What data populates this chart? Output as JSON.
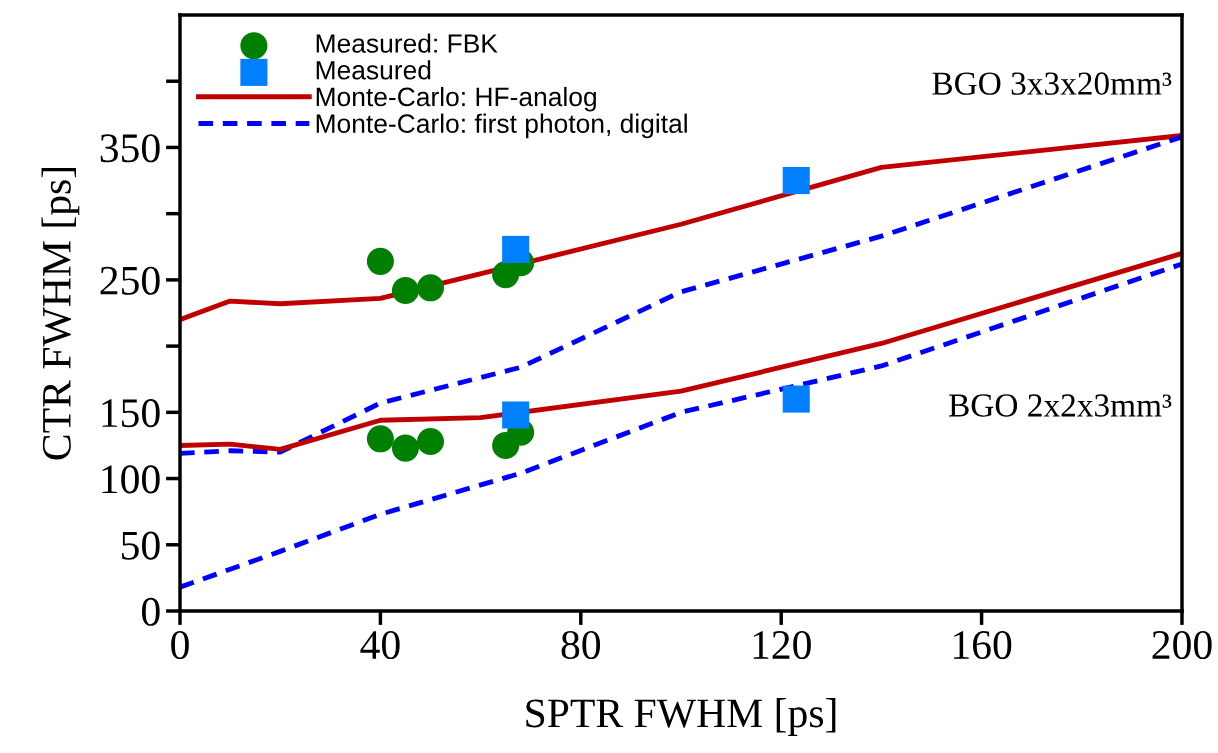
{
  "chart_data": {
    "type": "line",
    "xlabel": "SPTR FWHM [ps]",
    "ylabel": "CTR FWHM [ps]",
    "xlim": [
      0,
      200
    ],
    "xticks": [
      0,
      40,
      80,
      120,
      160,
      200
    ],
    "ylim": [
      0,
      450
    ],
    "yticks": [
      0,
      50,
      100,
      150,
      {
        "value": 200,
        "label": null
      },
      250,
      {
        "value": 300,
        "label": null
      },
      350,
      {
        "value": 400,
        "label": null
      }
    ],
    "grid": false,
    "legend": "top left",
    "annotations": [
      "BGO 3x3x20mm³",
      "BGO 2x2x3mm³"
    ],
    "series": [
      {
        "name": "Measured: FBK",
        "type": "scatter",
        "marker": "circle",
        "color": "#008000",
        "x": [
          40,
          45,
          50,
          65,
          68,
          40,
          45,
          50,
          65,
          68
        ],
        "values": [
          264,
          242,
          244,
          254,
          263,
          130,
          123,
          128,
          125,
          135
        ]
      },
      {
        "name": "Measured",
        "type": "scatter",
        "marker": "square",
        "color": "#0080ff",
        "x": [
          67,
          123,
          67,
          123
        ],
        "values": [
          273,
          325,
          148,
          160
        ]
      },
      {
        "name": "Monte-Carlo: HF-analog",
        "line_style": "solid",
        "color": "#c00000",
        "x": [
          0,
          10,
          20,
          40,
          100,
          140,
          200
        ],
        "values": [
          220,
          234,
          232,
          236,
          292,
          335,
          359
        ]
      },
      {
        "name": "Monte-Carlo: first photon, digital",
        "line_style": "dashed",
        "color": "#0000ff",
        "x": [
          0,
          10,
          20,
          40,
          68,
          100,
          140,
          200
        ],
        "values": [
          119,
          121,
          120,
          157,
          184,
          241,
          283,
          358
        ]
      },
      {
        "line_style": "solid",
        "color": "#c00000",
        "x": [
          0,
          10,
          20,
          40,
          60,
          100,
          140,
          200
        ],
        "values": [
          125,
          126,
          122,
          144,
          146,
          166,
          202,
          270
        ]
      },
      {
        "line_style": "dashed",
        "color": "#0000ff",
        "x": [
          0,
          20,
          40,
          68,
          100,
          140,
          200
        ],
        "values": [
          18,
          45,
          73,
          104,
          150,
          185,
          262
        ]
      }
    ]
  }
}
